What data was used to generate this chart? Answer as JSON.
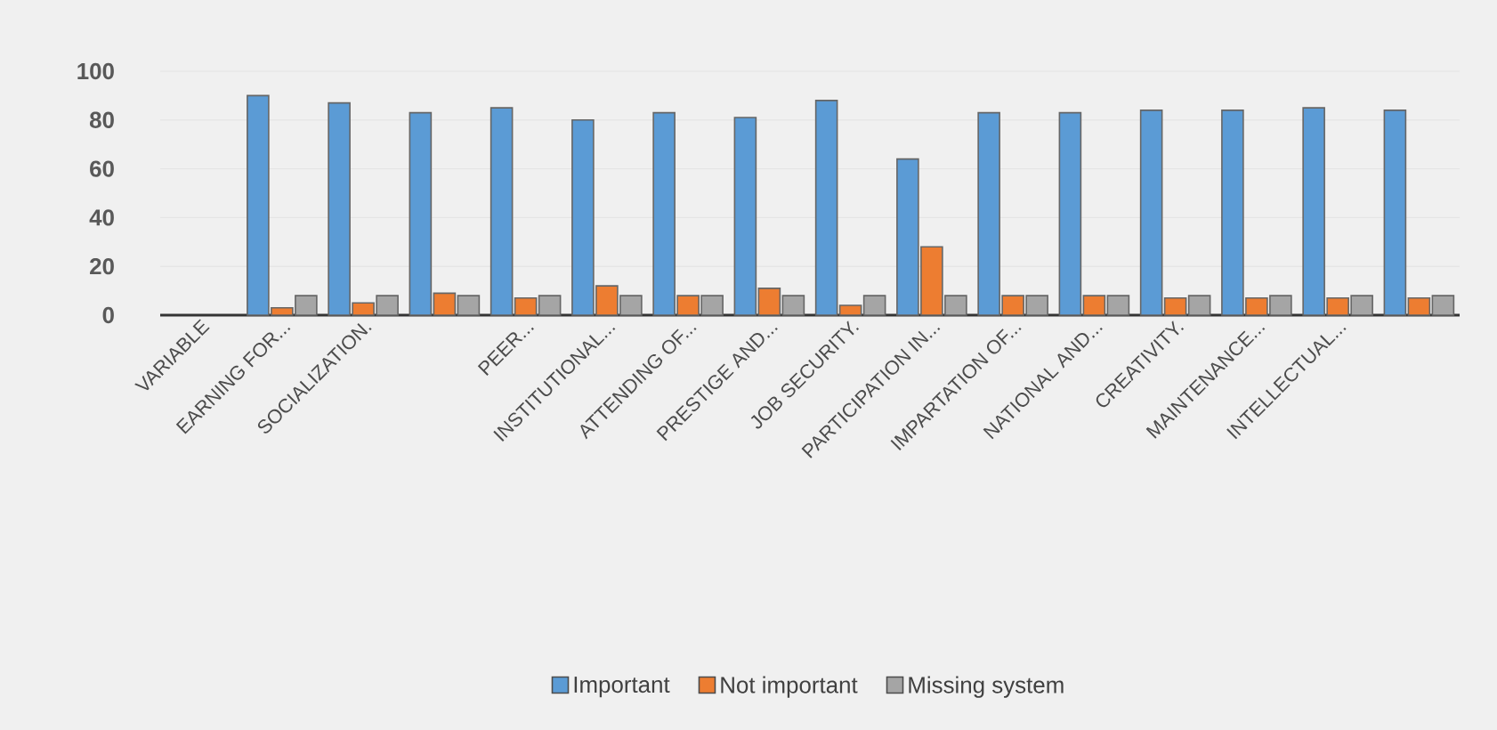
{
  "chart_data": {
    "type": "bar",
    "categories": [
      "VARIABLE",
      "EARNING FOR...",
      "SOCIALIZATION.",
      null,
      "PEER...",
      "INSTITUTIONAL...",
      "ATTENDING OF...",
      "PRESTIGE AND...",
      "JOB SECURITY.",
      "PARTICIPATION IN...",
      "IMPARTATION OF...",
      "NATIONAL AND...",
      "CREATIVITY.",
      "MAINTENANCE...",
      "INTELLECTUAL...",
      null
    ],
    "series": [
      {
        "name": "Important",
        "color": "#5b9bd5",
        "values": [
          null,
          90,
          87,
          83,
          85,
          80,
          83,
          81,
          88,
          64,
          83,
          83,
          84,
          84,
          85,
          84
        ]
      },
      {
        "name": "Not important",
        "color": "#ed7d31",
        "values": [
          null,
          3,
          5,
          9,
          7,
          12,
          8,
          11,
          4,
          28,
          8,
          8,
          7,
          7,
          7,
          7
        ]
      },
      {
        "name": "Missing system",
        "color": "#a5a5a5",
        "values": [
          null,
          8,
          8,
          8,
          8,
          8,
          8,
          8,
          8,
          8,
          8,
          8,
          8,
          8,
          8,
          8
        ]
      }
    ],
    "ylim": [
      0,
      100
    ],
    "yticks": [
      0,
      20,
      40,
      60,
      80,
      100
    ],
    "grid": "y",
    "legend": "bottom"
  }
}
